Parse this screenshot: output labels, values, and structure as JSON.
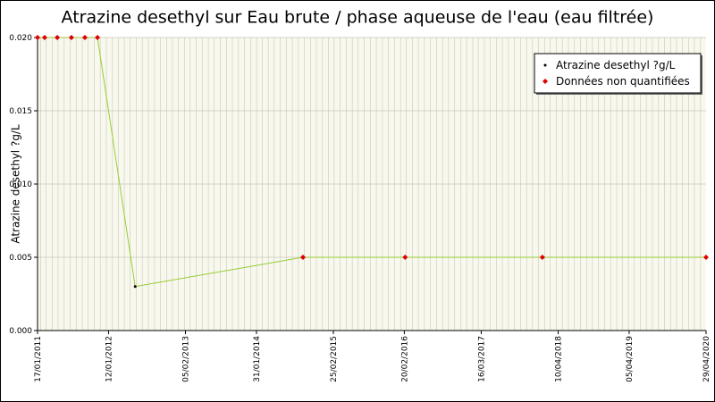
{
  "chart_data": {
    "type": "line",
    "title": "Atrazine desethyl sur Eau brute / phase aqueuse de l'eau (eau filtrée)",
    "y_label": "Atrazine desethyl ?g/L",
    "x": [
      "17/01/2011",
      "22/02/2011",
      "27/04/2011",
      "08/07/2011",
      "14/09/2011",
      "17/11/2011",
      "26/05/2012",
      "24/09/2014",
      "24/02/2016",
      "20/01/2018",
      "29/04/2020"
    ],
    "series": [
      {
        "name": "Atrazine desethyl ?g/L",
        "color": "#000000",
        "values": [
          null,
          null,
          null,
          null,
          null,
          null,
          0.003,
          null,
          null,
          null,
          null
        ]
      },
      {
        "name": "Données non quantifiées",
        "color": "#dd0000",
        "values": [
          0.02,
          0.02,
          0.02,
          0.02,
          0.02,
          0.02,
          null,
          0.005,
          0.005,
          0.005,
          0.005
        ]
      }
    ],
    "line_color": "#99cc33",
    "xlim": [
      "17/01/2011",
      "29/04/2020"
    ],
    "xticks": [
      "17/01/2011",
      "12/01/2012",
      "05/02/2013",
      "31/01/2014",
      "25/02/2015",
      "20/02/2016",
      "16/03/2017",
      "10/04/2018",
      "05/04/2019",
      "29/04/2020"
    ],
    "ylim": [
      0,
      0.02
    ],
    "yticks": [
      {
        "value": 0,
        "label": "0.000"
      },
      {
        "value": 0.005,
        "label": "0.005"
      },
      {
        "value": 0.01,
        "label": "0.010"
      },
      {
        "value": 0.015,
        "label": "0.015"
      },
      {
        "value": 0.02,
        "label": "0.020"
      }
    ],
    "grid": true,
    "legend": "top-right"
  }
}
